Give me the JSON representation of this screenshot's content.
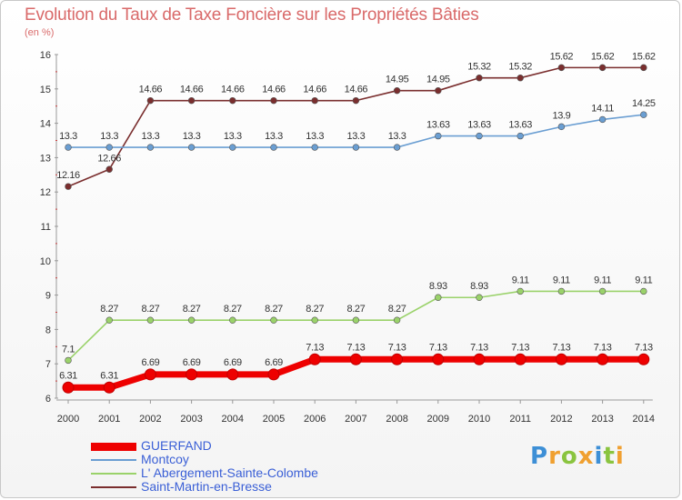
{
  "title": "Evolution du Taux de Taxe Foncière sur les Propriétés Bâties",
  "unit_label": "(en %)",
  "logo": {
    "letters": [
      {
        "ch": "P",
        "color": "#3d8fd6"
      },
      {
        "ch": "r",
        "color": "#f0a030"
      },
      {
        "ch": "o",
        "color": "#8ac43f"
      },
      {
        "ch": "x",
        "color": "#f0a030"
      },
      {
        "ch": "i",
        "color": "#3d8fd6"
      },
      {
        "ch": "t",
        "color": "#8ac43f"
      },
      {
        "ch": "i",
        "color": "#f0a030"
      }
    ]
  },
  "chart_data": {
    "type": "line",
    "title": "Evolution du Taux de Taxe Foncière sur les Propriétés Bâties",
    "ylabel": "(en %)",
    "xlabel": "",
    "ylim": [
      6,
      16
    ],
    "yticks": [
      "6",
      "7",
      "8",
      "9",
      "10",
      "11",
      "12",
      "13",
      "14",
      "15",
      "16"
    ],
    "categories": [
      "2000",
      "2001",
      "2002",
      "2003",
      "2004",
      "2005",
      "2006",
      "2007",
      "2008",
      "2009",
      "2010",
      "2011",
      "2012",
      "2013",
      "2014"
    ],
    "grid": false,
    "legend_position": "bottom-left",
    "series": [
      {
        "name": "GUERFAND",
        "color": "#ee0000",
        "values": [
          6.31,
          6.31,
          6.69,
          6.69,
          6.69,
          6.69,
          7.13,
          7.13,
          7.13,
          7.13,
          7.13,
          7.13,
          7.13,
          7.13,
          7.13
        ],
        "labels": [
          "6.31",
          "6.31",
          "6.69",
          "6.69",
          "6.69",
          "6.69",
          "7.13",
          "7.13",
          "7.13",
          "7.13",
          "7.13",
          "7.13",
          "7.13",
          "7.13",
          "7.13"
        ]
      },
      {
        "name": "Montcoy",
        "color": "#6a9ed2",
        "values": [
          13.3,
          13.3,
          13.3,
          13.3,
          13.3,
          13.3,
          13.3,
          13.3,
          13.3,
          13.63,
          13.63,
          13.63,
          13.9,
          14.11,
          14.25
        ],
        "labels": [
          "13.3",
          "13.3",
          "13.3",
          "13.3",
          "13.3",
          "13.3",
          "13.3",
          "13.3",
          "13.3",
          "13.63",
          "13.63",
          "13.63",
          "13.9",
          "14.11",
          "14.25"
        ]
      },
      {
        "name": "L' Abergement-Sainte-Colombe",
        "color": "#9ad26a",
        "values": [
          7.1,
          8.27,
          8.27,
          8.27,
          8.27,
          8.27,
          8.27,
          8.27,
          8.27,
          8.93,
          8.93,
          9.11,
          9.11,
          9.11,
          9.11
        ],
        "labels": [
          "7.1",
          "8.27",
          "8.27",
          "8.27",
          "8.27",
          "8.27",
          "8.27",
          "8.27",
          "8.27",
          "8.93",
          "8.93",
          "9.11",
          "9.11",
          "9.11",
          "9.11"
        ]
      },
      {
        "name": "Saint-Martin-en-Bresse",
        "color": "#7a2e2e",
        "values": [
          12.16,
          12.66,
          14.66,
          14.66,
          14.66,
          14.66,
          14.66,
          14.66,
          14.95,
          14.95,
          15.32,
          15.32,
          15.62,
          15.62,
          15.62
        ],
        "labels": [
          "12.16",
          "12.66",
          "14.66",
          "14.66",
          "14.66",
          "14.66",
          "14.66",
          "14.66",
          "14.95",
          "14.95",
          "15.32",
          "15.32",
          "15.62",
          "15.62",
          "15.62"
        ]
      }
    ]
  }
}
